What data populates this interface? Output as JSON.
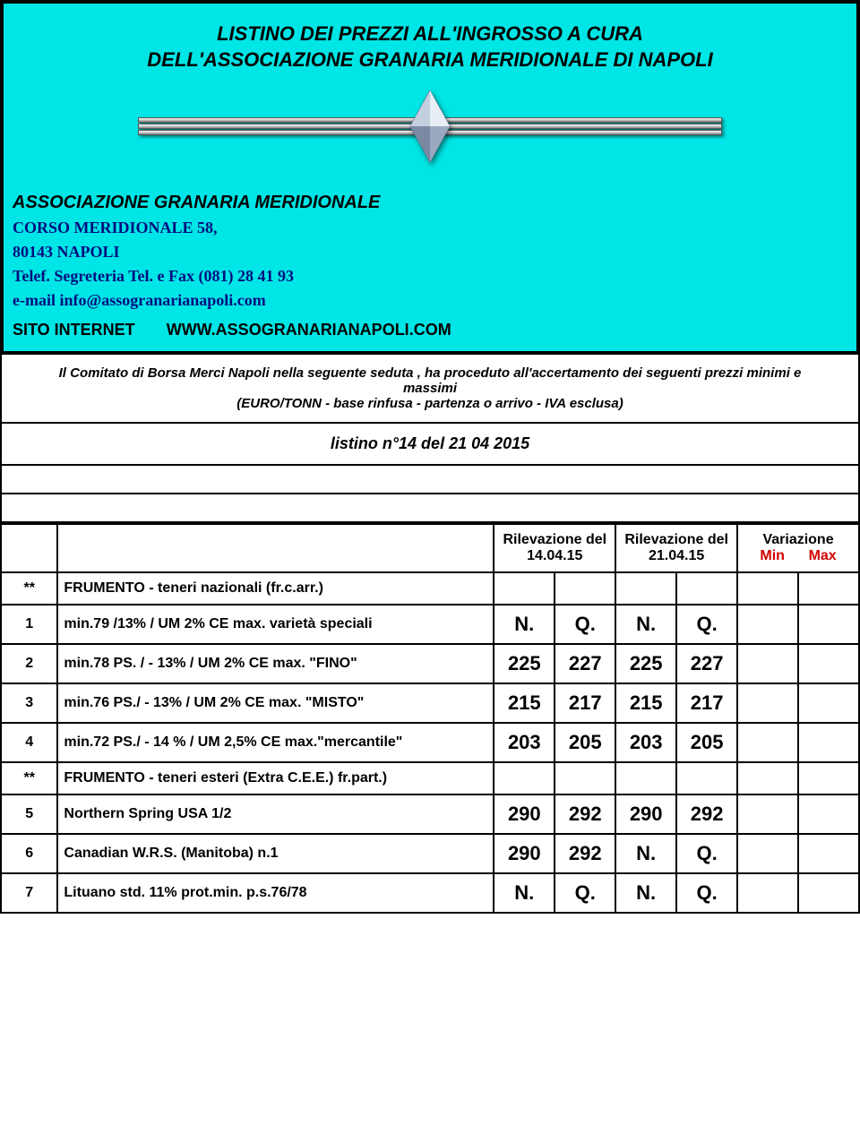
{
  "header": {
    "title_line1": "LISTINO DEI PREZZI ALL'INGROSSO  A CURA",
    "title_line2": "DELL'ASSOCIAZIONE GRANARIA MERIDIONALE DI NAPOLI",
    "org_name": "ASSOCIAZIONE GRANARIA MERIDIONALE",
    "address": "CORSO MERIDIONALE 58,",
    "city": "80143 NAPOLI",
    "tel": "Telef.  Segreteria Tel. e Fax  (081) 28 41 93",
    "email": "e-mail info@assogranarianapoli.com",
    "site_label": "SITO INTERNET",
    "site_url": "WWW.ASSOGRANARIANAPOLI.COM",
    "bg_color": "#00e5e5"
  },
  "committee": {
    "line1": "Il Comitato di Borsa Merci Napoli nella seguente seduta , ha proceduto all'accertamento dei seguenti prezzi minimi e massimi",
    "line2": "(EURO/TONN - base rinfusa - partenza o arrivo - IVA esclusa)"
  },
  "listino": "listino n°14 del 21 04 2015",
  "table": {
    "header": {
      "ril1_label": "Rilevazione del",
      "ril1_date": "14.04.15",
      "ril2_label": "Rilevazione del",
      "ril2_date": "21.04.15",
      "var_label": "Variazione",
      "var_min": "Min",
      "var_max": "Max"
    },
    "rows": [
      {
        "idx": "**",
        "desc": "FRUMENTO - teneri nazionali (fr.c.arr.)",
        "r1a": "",
        "r1b": "",
        "r2a": "",
        "r2b": "",
        "vmin": "",
        "vmax": "",
        "big": false
      },
      {
        "idx": "1",
        "desc": "min.79 /13% / UM 2% CE max. varietà speciali",
        "r1a": "N.",
        "r1b": "Q.",
        "r2a": "N.",
        "r2b": "Q.",
        "vmin": "",
        "vmax": "",
        "big": true
      },
      {
        "idx": "2",
        "desc": "min.78 PS. / - 13% / UM 2% CE max. \"FINO\"",
        "r1a": "225",
        "r1b": "227",
        "r2a": "225",
        "r2b": "227",
        "vmin": "",
        "vmax": "",
        "big": true
      },
      {
        "idx": "3",
        "desc": "min.76 PS./ - 13% / UM 2% CE max. \"MISTO\"",
        "r1a": "215",
        "r1b": "217",
        "r2a": "215",
        "r2b": "217",
        "vmin": "",
        "vmax": "",
        "big": true
      },
      {
        "idx": "4",
        "desc": "min.72 PS./ - 14 % / UM 2,5% CE max.\"mercantile\"",
        "r1a": "203",
        "r1b": "205",
        "r2a": "203",
        "r2b": "205",
        "vmin": "",
        "vmax": "",
        "big": true
      },
      {
        "idx": "**",
        "desc": "FRUMENTO - teneri esteri (Extra C.E.E.) fr.part.)",
        "r1a": "",
        "r1b": "",
        "r2a": "",
        "r2b": "",
        "vmin": "",
        "vmax": "",
        "big": false
      },
      {
        "idx": "5",
        "desc": "Northern Spring USA 1/2",
        "r1a": "290",
        "r1b": "292",
        "r2a": "290",
        "r2b": "292",
        "vmin": "",
        "vmax": "",
        "big": true
      },
      {
        "idx": "6",
        "desc": "Canadian W.R.S. (Manitoba) n.1",
        "r1a": "290",
        "r1b": "292",
        "r2a": "N.",
        "r2b": "Q.",
        "vmin": "",
        "vmax": "",
        "big": true
      },
      {
        "idx": "7",
        "desc": "Lituano std. 11% prot.min. p.s.76/78",
        "r1a": "N.",
        "r1b": "Q.",
        "r2a": "N.",
        "r2b": "Q.",
        "vmin": "",
        "vmax": "",
        "big": true
      }
    ]
  }
}
